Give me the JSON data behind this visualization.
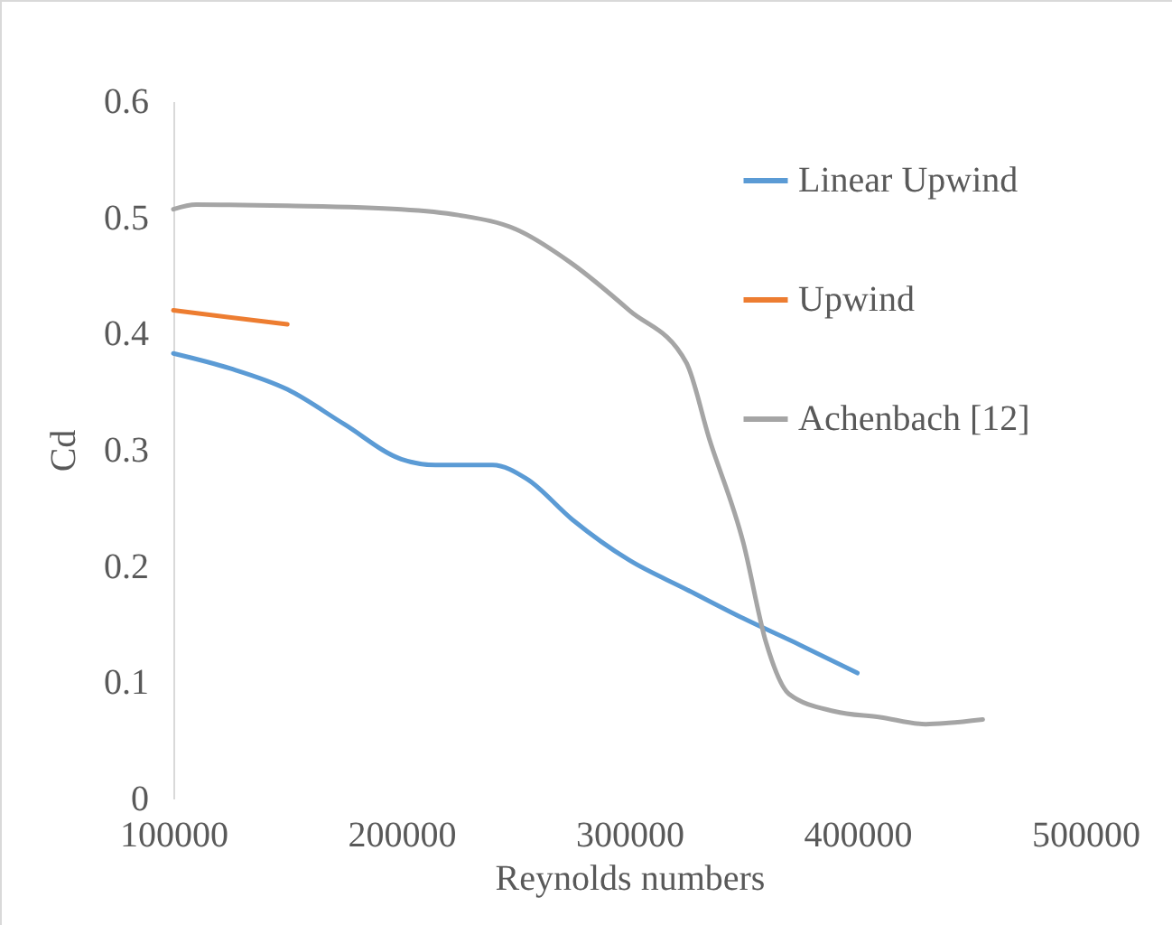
{
  "chart_data": {
    "type": "line",
    "xlabel": "Reynolds numbers",
    "ylabel": "Cd",
    "xlim": [
      100000,
      500000
    ],
    "xticks": [
      100000,
      200000,
      300000,
      400000,
      500000
    ],
    "ylim": [
      0,
      0.6
    ],
    "yticks": [
      0,
      0.1,
      0.2,
      0.3,
      0.4,
      0.5,
      0.6
    ],
    "grid": false,
    "legend": "top right",
    "marker": "none",
    "line_style": "solid",
    "series": [
      {
        "name": "Linear Upwind",
        "color": "#5b9bd5",
        "x": [
          100000,
          125000,
          150000,
          175000,
          200000,
          215000,
          240000,
          255000,
          275000,
          300000,
          325000,
          350000,
          375000,
          400000
        ],
        "values": [
          0.383,
          0.37,
          0.352,
          0.322,
          0.292,
          0.287,
          0.287,
          0.275,
          0.24,
          0.205,
          0.18,
          0.155,
          0.132,
          0.108
        ]
      },
      {
        "name": "Upwind",
        "color": "#ed7d31",
        "x": [
          100000,
          150000
        ],
        "values": [
          0.42,
          0.408
        ]
      },
      {
        "name": "Achenbach [12]",
        "color": "#a5a5a5",
        "x": [
          100000,
          110000,
          150000,
          200000,
          225000,
          250000,
          275000,
          300000,
          325000,
          335000,
          350000,
          360000,
          370000,
          390000,
          410000,
          430000,
          440000,
          455000
        ],
        "values": [
          0.507,
          0.511,
          0.51,
          0.507,
          0.502,
          0.49,
          0.46,
          0.42,
          0.375,
          0.31,
          0.22,
          0.134,
          0.09,
          0.075,
          0.07,
          0.064,
          0.065,
          0.068
        ]
      }
    ]
  }
}
